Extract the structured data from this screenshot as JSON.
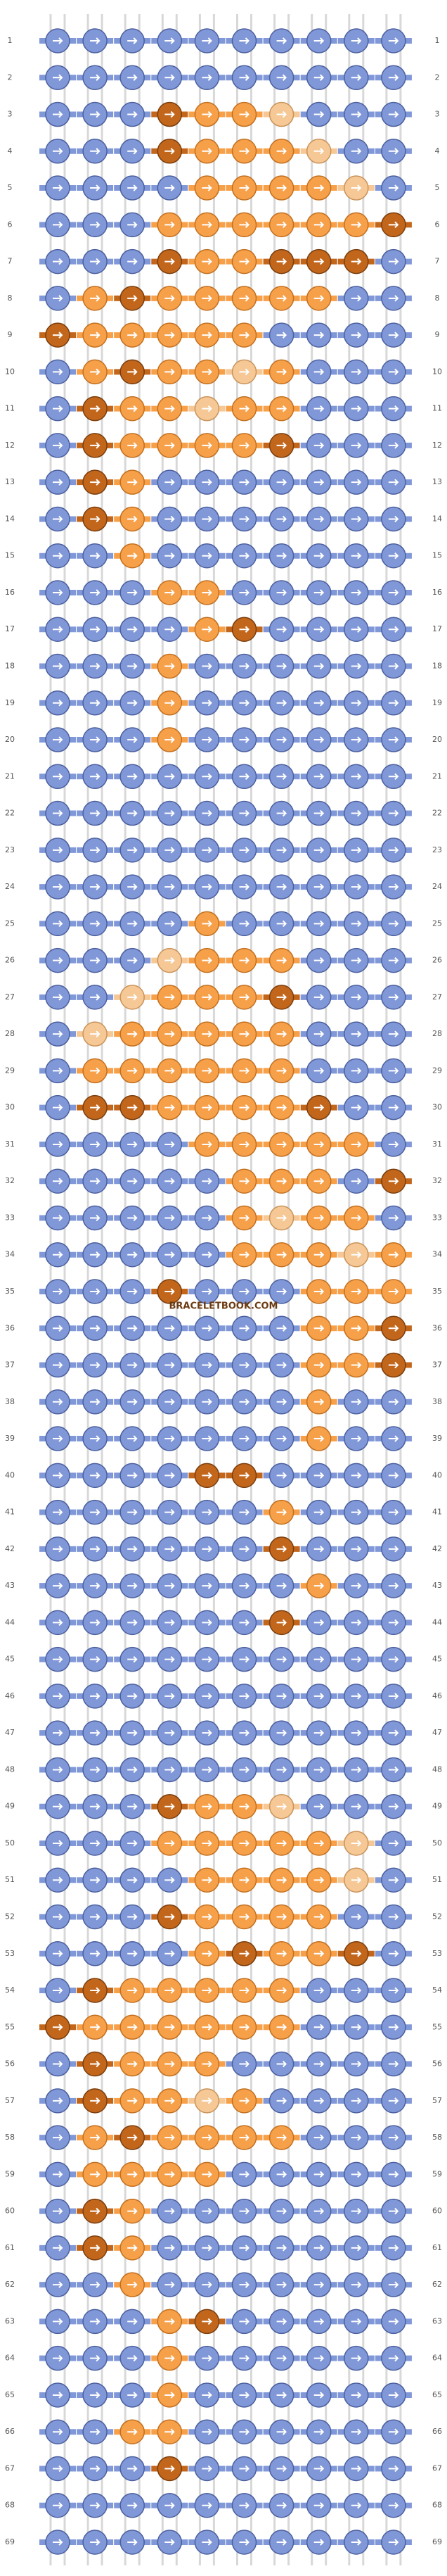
{
  "watermark": "BRACELETBOOK.COM",
  "palette": {
    "b": "#8098d8",
    "o": "#f7a04a",
    "d": "#c2661c",
    "l": "#f5c896"
  },
  "rows": [
    {
      "number": 1,
      "knots": "bbbbbbbbbb"
    },
    {
      "number": 2,
      "knots": "bbbbbbbbbb"
    },
    {
      "number": 3,
      "knots": "bbbdoolbbb"
    },
    {
      "number": 4,
      "knots": "bbbdooolbb"
    },
    {
      "number": 5,
      "knots": "bbbboooolb"
    },
    {
      "number": 6,
      "knots": "bbbooooood"
    },
    {
      "number": 7,
      "knots": "bbbdoodddb"
    },
    {
      "number": 8,
      "knots": "bodooooobb"
    },
    {
      "number": 9,
      "knots": "dooooobbbb"
    },
    {
      "number": 10,
      "knots": "bodoolobbb"
    },
    {
      "number": 11,
      "knots": "bdooloobbb"
    },
    {
      "number": 12,
      "knots": "bdoooodbbb"
    },
    {
      "number": 13,
      "knots": "bdobbbbbbb"
    },
    {
      "number": 14,
      "knots": "bdobbbbbbb"
    },
    {
      "number": 15,
      "knots": "bbobbbbbbb"
    },
    {
      "number": 16,
      "knots": "bbboobbbbb"
    },
    {
      "number": 17,
      "knots": "bbbbodbbbb"
    },
    {
      "number": 18,
      "knots": "bbbobbbbbb"
    },
    {
      "number": 19,
      "knots": "bbbobbbbbb"
    },
    {
      "number": 20,
      "knots": "bbbobbbbbb"
    },
    {
      "number": 21,
      "knots": "bbbbbbbbbb"
    },
    {
      "number": 22,
      "knots": "bbbbbbbbbb"
    },
    {
      "number": 23,
      "knots": "bbbbbbbbbb"
    },
    {
      "number": 24,
      "knots": "bbbbbbbbbb"
    },
    {
      "number": 25,
      "knots": "bbbbobbbbb"
    },
    {
      "number": 26,
      "knots": "bbblooobbb"
    },
    {
      "number": 27,
      "knots": "bblooodbbb"
    },
    {
      "number": 28,
      "knots": "blooooobbb"
    },
    {
      "number": 29,
      "knots": "boooooobbb"
    },
    {
      "number": 30,
      "knots": "bddoooodbb"
    },
    {
      "number": 31,
      "knots": "bbbbooooob"
    },
    {
      "number": 32,
      "knots": "bbbbbooobd"
    },
    {
      "number": 33,
      "knots": "bbbbboloob"
    },
    {
      "number": 34,
      "knots": "bbbbbooolo"
    },
    {
      "number": 35,
      "knots": "bbbdbbbooo"
    },
    {
      "number": 36,
      "knots": "bbbbbbbood"
    },
    {
      "number": 37,
      "knots": "bbbbbbbood"
    },
    {
      "number": 38,
      "knots": "bbbbbbbobb"
    },
    {
      "number": 39,
      "knots": "bbbbbbbobb"
    },
    {
      "number": 40,
      "knots": "bbbbddbbbb"
    },
    {
      "number": 41,
      "knots": "bbbbbbobbb"
    },
    {
      "number": 42,
      "knots": "bbbbbbdbbb"
    },
    {
      "number": 43,
      "knots": "bbbbbbbobb"
    },
    {
      "number": 44,
      "knots": "bbbbbbdbbb"
    },
    {
      "number": 45,
      "knots": "bbbbbbbbbb"
    },
    {
      "number": 46,
      "knots": "bbbbbbbbbb"
    },
    {
      "number": 47,
      "knots": "bbbbbbbbbb"
    },
    {
      "number": 48,
      "knots": "bbbbbbbbbb"
    },
    {
      "number": 49,
      "knots": "bbbdoolbbb"
    },
    {
      "number": 50,
      "knots": "bbbooooolb"
    },
    {
      "number": 51,
      "knots": "bbbboooolb"
    },
    {
      "number": 52,
      "knots": "bbbdoooobb"
    },
    {
      "number": 53,
      "knots": "bbbbodoodb"
    },
    {
      "number": 54,
      "knots": "bdooooobbb"
    },
    {
      "number": 55,
      "knots": "doooooobbb"
    },
    {
      "number": 56,
      "knots": "bdooobbbbb"
    },
    {
      "number": 57,
      "knots": "bdoolobbbb"
    },
    {
      "number": 58,
      "knots": "bodoooobbb"
    },
    {
      "number": 59,
      "knots": "boooobbbbb"
    },
    {
      "number": 60,
      "knots": "bdobbbbbbb"
    },
    {
      "number": 61,
      "knots": "bdobbbbbbb"
    },
    {
      "number": 62,
      "knots": "bbobbbbbbb"
    },
    {
      "number": 63,
      "knots": "bbbodbbbbb"
    },
    {
      "number": 64,
      "knots": "bbbobbbbbb"
    },
    {
      "number": 65,
      "knots": "bbbobbbbbb"
    },
    {
      "number": 66,
      "knots": "bboobbbbbb"
    },
    {
      "number": 67,
      "knots": "bbbdbbbbbb"
    },
    {
      "number": 68,
      "knots": "bbbbbbbbbb"
    },
    {
      "number": 69,
      "knots": "bbbbbbbbbb"
    }
  ]
}
